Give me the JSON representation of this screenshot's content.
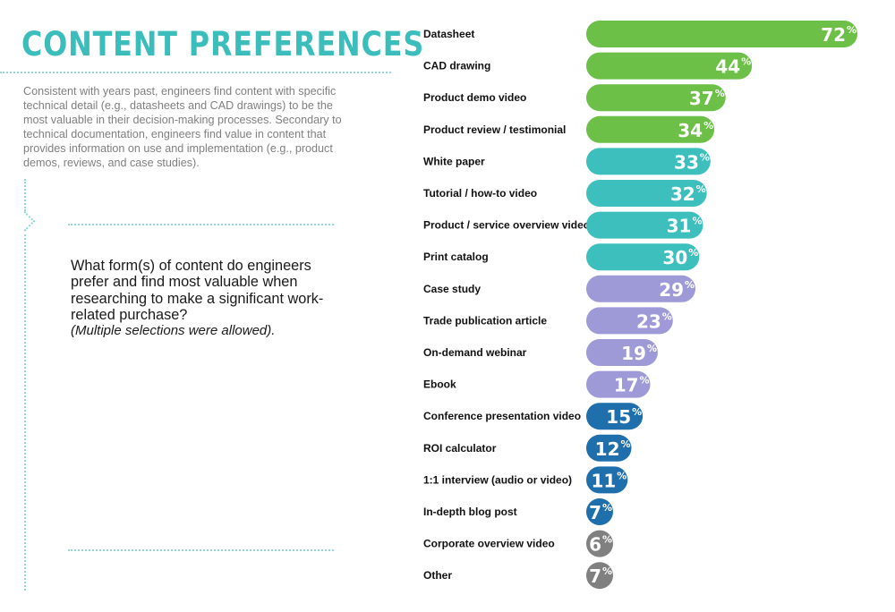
{
  "title": "CONTENT PREFERENCES",
  "intro": "Consistent with years past, engineers find content with specific technical detail (e.g., datasheets and CAD drawings) to be the most valuable in their decision-making processes. Secondary to technical documentation, engineers find value in content that provides information on use and implementation (e.g., product demos, reviews, and case studies).",
  "question": {
    "text": "What form(s) of content do engineers prefer and find most valuable when researching to make a significant work-related  purchase?",
    "note": "(Multiple selections were allowed)."
  },
  "colors": {
    "accent": "#3bbdbc",
    "green": "#6cbf47",
    "teal": "#3dc0bd",
    "lavender": "#9e9ad8",
    "blue": "#1f6fad",
    "gray": "#808080"
  },
  "chart_data": {
    "type": "bar",
    "orientation": "horizontal",
    "unit": "%",
    "xlim": [
      0,
      72
    ],
    "categories": [
      "Datasheet",
      "CAD drawing",
      "Product demo video",
      "Product review / testimonial",
      "White paper",
      "Tutorial / how-to video",
      "Product / service overview video",
      "Print catalog",
      "Case study",
      "Trade publication article",
      "On-demand webinar",
      "Ebook",
      "Conference presentation video",
      "ROI calculator",
      "1:1 interview (audio or video)",
      "In-depth blog post",
      "Corporate overview video",
      "Other"
    ],
    "values": [
      72,
      44,
      37,
      34,
      33,
      32,
      31,
      30,
      29,
      23,
      19,
      17,
      15,
      12,
      11,
      7,
      6,
      7
    ],
    "value_labels": [
      "72",
      "44",
      "37",
      "34",
      "33",
      "32",
      "31",
      "30",
      "29",
      "23",
      "19",
      "17",
      "15",
      "12",
      "11",
      "7",
      "6",
      "7"
    ],
    "bar_colors": [
      "#6cbf47",
      "#6cbf47",
      "#6cbf47",
      "#6cbf47",
      "#3dc0bd",
      "#3dc0bd",
      "#3dc0bd",
      "#3dc0bd",
      "#9e9ad8",
      "#9e9ad8",
      "#9e9ad8",
      "#9e9ad8",
      "#1f6fad",
      "#1f6fad",
      "#1f6fad",
      "#1f6fad",
      "#808080",
      "#808080"
    ]
  }
}
